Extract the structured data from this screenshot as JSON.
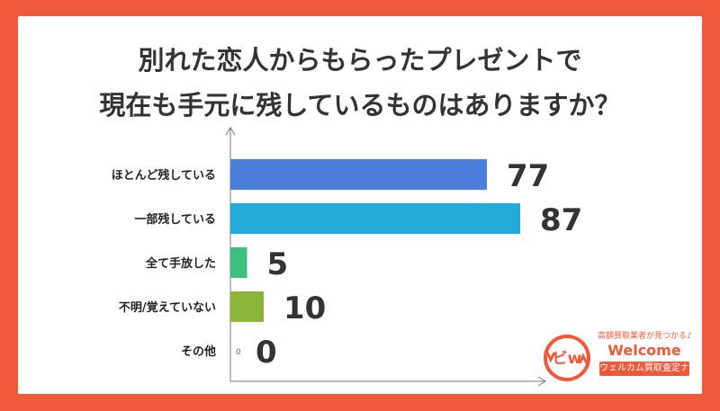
{
  "title_lines": [
    "別れた恋人からもらったプレゼントで",
    "現在も手元に残しているものはありますか？"
  ],
  "chart_data": {
    "type": "bar",
    "orientation": "horizontal",
    "title": "別れた恋人からもらったプレゼントで現在も手元に残しているものはありますか？",
    "categories": [
      "ほとんど残している",
      "一部残している",
      "全て手放した",
      "不明/覚えていない",
      "その他"
    ],
    "values": [
      77,
      87,
      5,
      10,
      0
    ],
    "value_labels": [
      "77",
      "87",
      "5",
      "10",
      "0"
    ],
    "zero_marker": "0",
    "colors": [
      "#4a7fdc",
      "#22a9d6",
      "#3fbf7f",
      "#8bb63a",
      "#c8c8c8"
    ],
    "xlim": [
      0,
      100
    ],
    "grid": false,
    "legend": "none"
  },
  "logo": {
    "tagline": "高額買取業者が見つかる♪",
    "word": "Welcome",
    "badge": "ウェルカム買取査定ナビ",
    "mark_text": "ビw",
    "color": "#f0583a"
  }
}
